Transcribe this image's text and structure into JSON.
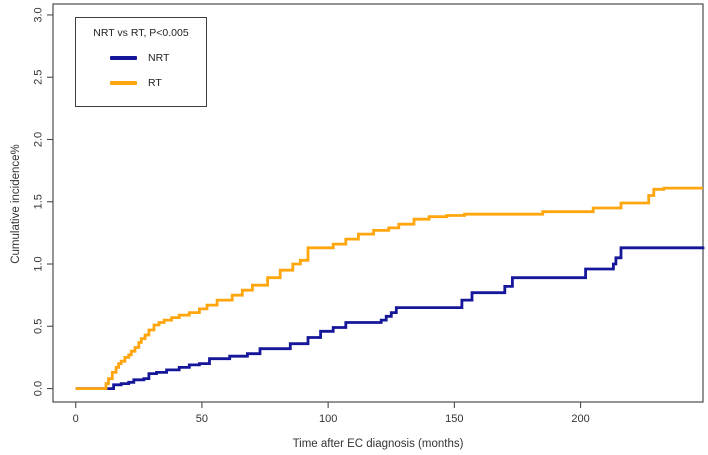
{
  "chart_data": {
    "type": "line",
    "subtype": "step-cumulative-incidence",
    "title": "",
    "xlabel": "Time after EC diagnosis (months)",
    "ylabel": "Cumulative incidence%",
    "xlim": [
      -9,
      248.5
    ],
    "ylim": [
      -0.108,
      3.088
    ],
    "xticks": [
      "0",
      "50",
      "100",
      "150",
      "200"
    ],
    "yticks": [
      "0.0",
      "0.5",
      "1.0",
      "1.5",
      "2.0",
      "2.5",
      "3.0"
    ],
    "grid": "off",
    "legend": {
      "position": "top-left",
      "title": "NRT vs RT, P<0.005",
      "entries": [
        {
          "name": "NRT",
          "color": "#16169a"
        },
        {
          "name": "RT",
          "color": "#ffa60f"
        }
      ]
    },
    "series": [
      {
        "name": "NRT",
        "color": "#16169a",
        "points": [
          [
            0,
            0
          ],
          [
            15,
            0.03
          ],
          [
            18,
            0.04
          ],
          [
            21,
            0.05
          ],
          [
            23,
            0.07
          ],
          [
            27,
            0.08
          ],
          [
            29,
            0.12
          ],
          [
            32,
            0.13
          ],
          [
            36,
            0.15
          ],
          [
            41,
            0.17
          ],
          [
            45,
            0.19
          ],
          [
            49,
            0.2
          ],
          [
            53,
            0.24
          ],
          [
            61,
            0.26
          ],
          [
            68,
            0.28
          ],
          [
            73,
            0.32
          ],
          [
            85,
            0.36
          ],
          [
            92,
            0.41
          ],
          [
            97,
            0.46
          ],
          [
            102,
            0.49
          ],
          [
            107,
            0.53
          ],
          [
            121,
            0.55
          ],
          [
            123,
            0.58
          ],
          [
            125,
            0.61
          ],
          [
            127,
            0.65
          ],
          [
            153,
            0.71
          ],
          [
            157,
            0.77
          ],
          [
            170,
            0.82
          ],
          [
            173,
            0.89
          ],
          [
            202,
            0.96
          ],
          [
            213,
            1.0
          ],
          [
            214,
            1.05
          ],
          [
            216,
            1.13
          ],
          [
            248.5,
            1.14
          ]
        ]
      },
      {
        "name": "RT",
        "color": "#ffa60f",
        "points": [
          [
            0,
            0
          ],
          [
            12,
            0.04
          ],
          [
            13,
            0.08
          ],
          [
            14.5,
            0.13
          ],
          [
            16,
            0.17
          ],
          [
            17,
            0.2
          ],
          [
            18,
            0.22
          ],
          [
            19.5,
            0.25
          ],
          [
            21,
            0.27
          ],
          [
            22,
            0.3
          ],
          [
            23.5,
            0.33
          ],
          [
            25,
            0.37
          ],
          [
            26,
            0.4
          ],
          [
            27.5,
            0.43
          ],
          [
            29,
            0.47
          ],
          [
            31,
            0.51
          ],
          [
            33,
            0.53
          ],
          [
            35,
            0.55
          ],
          [
            38,
            0.57
          ],
          [
            41,
            0.59
          ],
          [
            45,
            0.61
          ],
          [
            49,
            0.64
          ],
          [
            52,
            0.67
          ],
          [
            56,
            0.71
          ],
          [
            62,
            0.75
          ],
          [
            66,
            0.79
          ],
          [
            70,
            0.83
          ],
          [
            76,
            0.89
          ],
          [
            81,
            0.95
          ],
          [
            86,
            1.0
          ],
          [
            89,
            1.03
          ],
          [
            92,
            1.13
          ],
          [
            102,
            1.16
          ],
          [
            107,
            1.2
          ],
          [
            112,
            1.24
          ],
          [
            118,
            1.27
          ],
          [
            124,
            1.29
          ],
          [
            128,
            1.32
          ],
          [
            134,
            1.36
          ],
          [
            140,
            1.38
          ],
          [
            147,
            1.39
          ],
          [
            154,
            1.4
          ],
          [
            185,
            1.42
          ],
          [
            205,
            1.45
          ],
          [
            216,
            1.49
          ],
          [
            227,
            1.55
          ],
          [
            229,
            1.6
          ],
          [
            233,
            1.61
          ],
          [
            248.5,
            1.61
          ]
        ]
      }
    ],
    "style": {
      "axis_color": "#4c4c4c",
      "text_color": "#333333",
      "line_width": 2.8,
      "plot_bg": "#ffffff"
    }
  }
}
